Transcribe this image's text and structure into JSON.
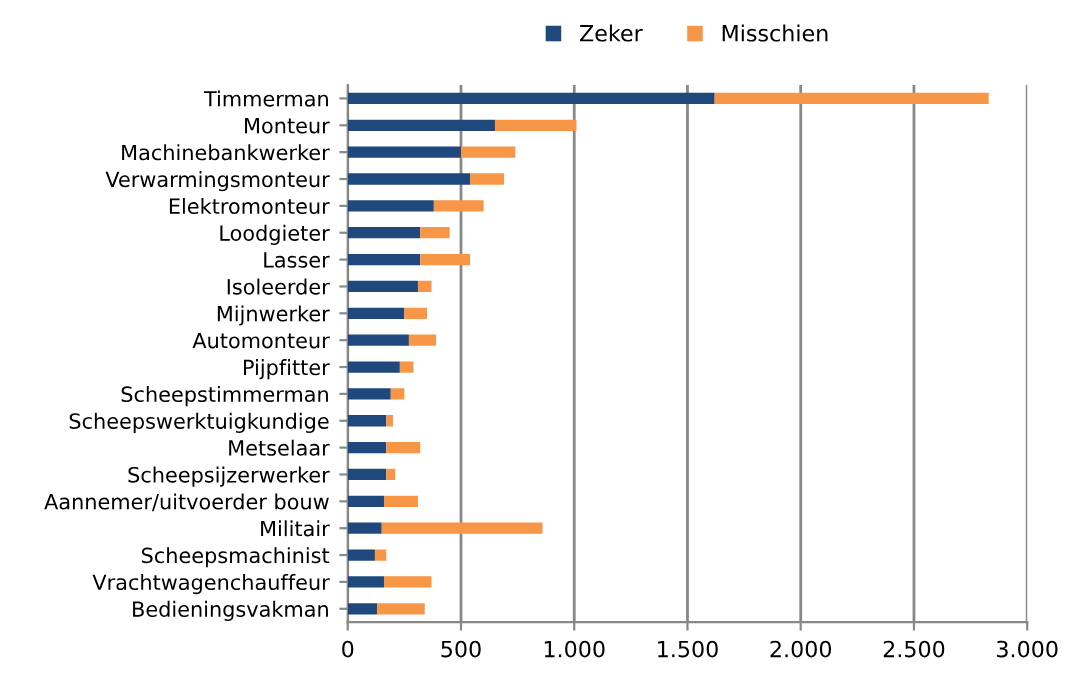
{
  "chart_data": {
    "type": "bar",
    "orientation": "horizontal",
    "stacked": true,
    "categories": [
      "Timmerman",
      "Monteur",
      "Machinebankwerker",
      "Verwarmingsmonteur",
      "Elektromonteur",
      "Loodgieter",
      "Lasser",
      "Isoleerder",
      "Mijnwerker",
      "Automonteur",
      "Pijpfitter",
      "Scheepstimmerman",
      "Scheepswerktuigkundige",
      "Metselaar",
      "Scheepsijzerwerker",
      "Aannemer/uitvoerder bouw",
      "Militair",
      "Scheepsmachinist",
      "Vrachtwagenchauffeur",
      "Bedieningsvakman"
    ],
    "series": [
      {
        "name": "Zeker",
        "color": "#1f497d",
        "values": [
          1620,
          650,
          500,
          540,
          380,
          320,
          320,
          310,
          250,
          270,
          230,
          190,
          170,
          170,
          170,
          160,
          150,
          120,
          160,
          130
        ]
      },
      {
        "name": "Misschien",
        "color": "#f79646",
        "values": [
          1210,
          360,
          240,
          150,
          220,
          130,
          220,
          60,
          100,
          120,
          60,
          60,
          30,
          150,
          40,
          150,
          710,
          50,
          210,
          210
        ]
      }
    ],
    "xlim": [
      0,
      3000
    ],
    "xticks": [
      0,
      {
        "value": 500,
        "label": "500"
      },
      {
        "value": 1000,
        "label": "1.000"
      },
      {
        "value": 1500,
        "label": "1.500"
      },
      {
        "value": 2000,
        "label": "2.000"
      },
      {
        "value": 2500,
        "label": "2.500"
      },
      {
        "value": 3000,
        "label": "3.000"
      }
    ],
    "grid": "x",
    "legend": "top"
  }
}
